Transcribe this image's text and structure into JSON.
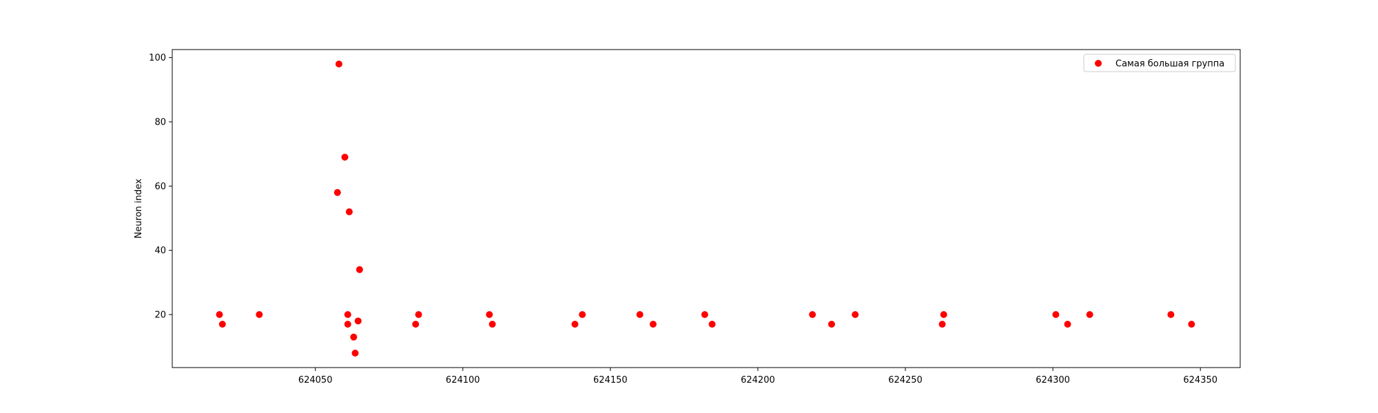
{
  "chart_data": {
    "type": "scatter",
    "ylabel": "Neuron index",
    "xlabel": "",
    "xlim": [
      624001.5,
      624363.5
    ],
    "ylim": [
      3.5,
      102.5
    ],
    "xticks": [
      624050,
      624100,
      624150,
      624200,
      624250,
      624300,
      624350
    ],
    "yticks": [
      20,
      40,
      60,
      80,
      100
    ],
    "legend": "top-right",
    "grid": false,
    "series": [
      {
        "name": "Самая большая группа",
        "color": "#ff0000",
        "points": [
          [
            624017.5,
            20
          ],
          [
            624018.5,
            17
          ],
          [
            624031,
            20
          ],
          [
            624057.5,
            58
          ],
          [
            624058,
            98
          ],
          [
            624060,
            69
          ],
          [
            624061,
            20
          ],
          [
            624061,
            17
          ],
          [
            624061.5,
            52
          ],
          [
            624063,
            13
          ],
          [
            624063.5,
            8
          ],
          [
            624064.5,
            18
          ],
          [
            624065,
            34
          ],
          [
            624084,
            17
          ],
          [
            624085,
            20
          ],
          [
            624109,
            20
          ],
          [
            624110,
            17
          ],
          [
            624138,
            17
          ],
          [
            624140.5,
            20
          ],
          [
            624160,
            20
          ],
          [
            624164.5,
            17
          ],
          [
            624182,
            20
          ],
          [
            624184.5,
            17
          ],
          [
            624218.5,
            20
          ],
          [
            624225,
            17
          ],
          [
            624233,
            20
          ],
          [
            624262.5,
            17
          ],
          [
            624263,
            20
          ],
          [
            624301,
            20
          ],
          [
            624305,
            17
          ],
          [
            624312.5,
            20
          ],
          [
            624340,
            20
          ],
          [
            624347,
            17
          ]
        ]
      }
    ]
  }
}
